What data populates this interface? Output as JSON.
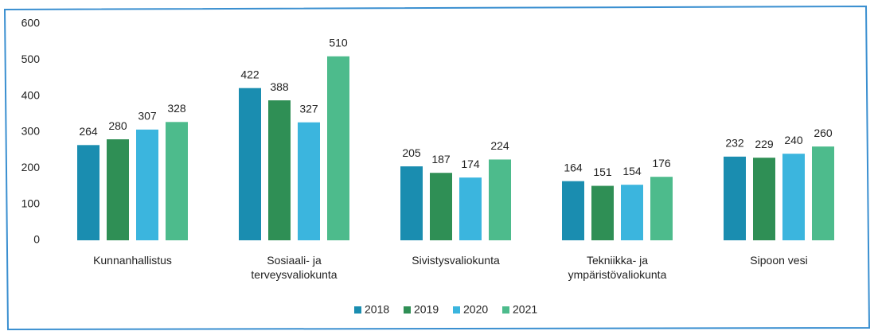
{
  "chart_data": {
    "type": "bar",
    "categories": [
      "Kunnanhallistus",
      "Sosiaali- ja terveysvaliokunta",
      "Sivistysvaliokunta",
      "Tekniikka- ja ympäristövaliokunta",
      "Sipoon vesi"
    ],
    "series": [
      {
        "name": "2018",
        "color": "#1a8db0",
        "values": [
          264,
          422,
          205,
          164,
          232
        ]
      },
      {
        "name": "2019",
        "color": "#2f8f55",
        "values": [
          280,
          388,
          187,
          151,
          229
        ]
      },
      {
        "name": "2020",
        "color": "#3bb5de",
        "values": [
          307,
          327,
          174,
          154,
          240
        ]
      },
      {
        "name": "2021",
        "color": "#4dbb8c",
        "values": [
          328,
          510,
          224,
          176,
          260
        ]
      }
    ],
    "ylim": [
      0,
      600
    ],
    "yticks": [
      0,
      100,
      200,
      300,
      400,
      500,
      600
    ],
    "data_labels": true,
    "legend": "bottom"
  }
}
